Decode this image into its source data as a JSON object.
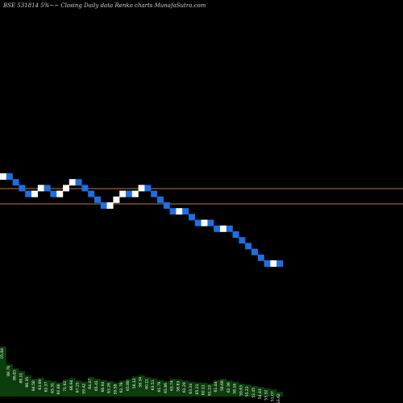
{
  "title": "BSE 531814  5%~~ Closing Daily data  Renko  charts MunafaSutra.com",
  "colors": {
    "background": "#000000",
    "brick_up": "#ffffff",
    "brick_down": "#1e6fe0",
    "reference_lines": "#c8743a",
    "volume_fill": "#0c3d0c",
    "volume_labels": "#ffffff"
  },
  "chart_data": {
    "type": "renko",
    "brick_direction": [
      "up",
      "down",
      "down",
      "down",
      "down",
      "up",
      "up",
      "down",
      "down",
      "up",
      "up",
      "up",
      "down",
      "down",
      "down",
      "down",
      "down",
      "up",
      "up",
      "up",
      "down",
      "up",
      "up",
      "down",
      "down",
      "down",
      "down",
      "down",
      "up",
      "down",
      "down",
      "down",
      "up",
      "down",
      "down",
      "up",
      "down",
      "down",
      "down",
      "down",
      "down",
      "down",
      "down",
      "up",
      "down"
    ],
    "reference_lines": [
      "upper",
      "lower"
    ],
    "volume": {
      "values": [
        85,
        55,
        48,
        43,
        36,
        30,
        32,
        28,
        26,
        24,
        29,
        31,
        27,
        25,
        33,
        30,
        28,
        26,
        24,
        27,
        30,
        34,
        36,
        33,
        31,
        28,
        26,
        30,
        29,
        27,
        25,
        24,
        23,
        22,
        28,
        30,
        27,
        25,
        22,
        20,
        18,
        16,
        14,
        12,
        8
      ],
      "labels": [
        "05.84",
        "88.76",
        "86.83",
        "88.31",
        "86.35",
        "84.58",
        "63.69",
        "62.37",
        "65.31",
        "60.66",
        "71.92",
        "66.94",
        "67.25",
        "59.42",
        "64.47",
        "65.41",
        "66.94",
        "63.26",
        "59.58",
        "61.78",
        "65.88",
        "56.12",
        "58.34",
        "60.11",
        "63.51",
        "61.79",
        "65.86",
        "63.74",
        "58.83",
        "61.29",
        "63.24",
        "65.21",
        "60.11",
        "61.19",
        "61.44",
        "58.68",
        "62.36",
        "58.16",
        "59.63",
        "55.23",
        "52.45",
        "54.43",
        "53.32",
        "51.07",
        "53.62"
      ]
    }
  }
}
